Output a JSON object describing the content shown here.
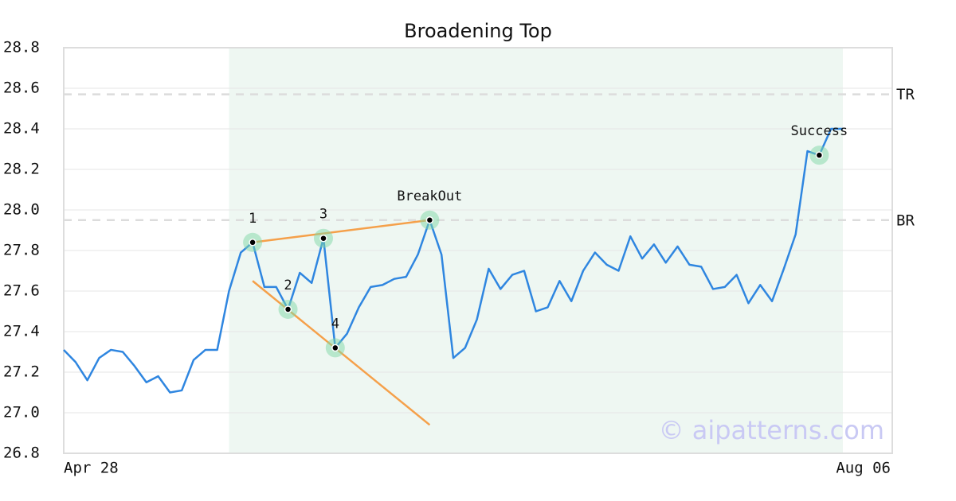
{
  "chart_data": {
    "type": "line",
    "title": "Broadening Top",
    "categories": [
      "Apr 28",
      null,
      null,
      null,
      null,
      null,
      null,
      null,
      null,
      null,
      null,
      null,
      null,
      null,
      null,
      null,
      null,
      null,
      null,
      null,
      null,
      null,
      null,
      null,
      null,
      null,
      null,
      null,
      null,
      null,
      null,
      null,
      null,
      null,
      null,
      null,
      null,
      null,
      null,
      null,
      null,
      null,
      null,
      null,
      null,
      null,
      null,
      null,
      null,
      null,
      null,
      null,
      null,
      null,
      null,
      null,
      null,
      null,
      null,
      null,
      null,
      null,
      null,
      null,
      null,
      null,
      "Aug 06"
    ],
    "series": [
      {
        "color": "#2f86e0",
        "values": [
          27.31,
          27.25,
          27.16,
          27.27,
          27.31,
          27.3,
          27.23,
          27.15,
          27.18,
          27.1,
          27.11,
          27.26,
          27.31,
          27.31,
          27.6,
          27.79,
          27.84,
          27.62,
          27.62,
          27.51,
          27.69,
          27.64,
          27.86,
          27.32,
          27.39,
          27.52,
          27.62,
          27.63,
          27.66,
          27.67,
          27.78,
          27.95,
          27.78,
          27.27,
          27.32,
          27.46,
          27.71,
          27.61,
          27.68,
          27.7,
          27.5,
          27.52,
          27.65,
          27.55,
          27.7,
          27.79,
          27.73,
          27.7,
          27.87,
          27.76,
          27.83,
          27.74,
          27.82,
          27.73,
          27.72,
          27.61,
          27.62,
          27.68,
          27.54,
          27.63,
          27.55,
          27.71,
          27.88,
          28.29,
          28.27,
          28.4,
          28.4
        ]
      }
    ],
    "ylim": [
      26.8,
      28.8
    ],
    "yticks": [
      26.8,
      {
        "value": 27,
        "label": "27.0"
      },
      27.2,
      27.4,
      27.6,
      27.8,
      {
        "value": 28,
        "label": "28.0"
      },
      28.2,
      28.4,
      28.6,
      28.8
    ],
    "grid": true,
    "highlight": {
      "from": 14,
      "to": 66,
      "color": "#eef7f2"
    },
    "levels": [
      {
        "label": "TR",
        "value": 28.57
      },
      {
        "label": "BR",
        "value": 27.95
      }
    ],
    "markers": [
      {
        "label": "1",
        "index": 16
      },
      {
        "label": "2",
        "index": 19
      },
      {
        "label": "3",
        "index": 22
      },
      {
        "label": "4",
        "index": 23
      },
      {
        "label": "BreakOut",
        "index": 31
      },
      {
        "label": "Success",
        "index": 64
      }
    ],
    "trendlines": [
      {
        "color": "#f5a04a",
        "x": [
          16,
          31
        ],
        "values": [
          27.84,
          27.95
        ]
      },
      {
        "color": "#f5a04a",
        "x": [
          16,
          31
        ],
        "values": [
          27.65,
          26.94
        ]
      }
    ],
    "watermark": "© aipatterns.com"
  }
}
